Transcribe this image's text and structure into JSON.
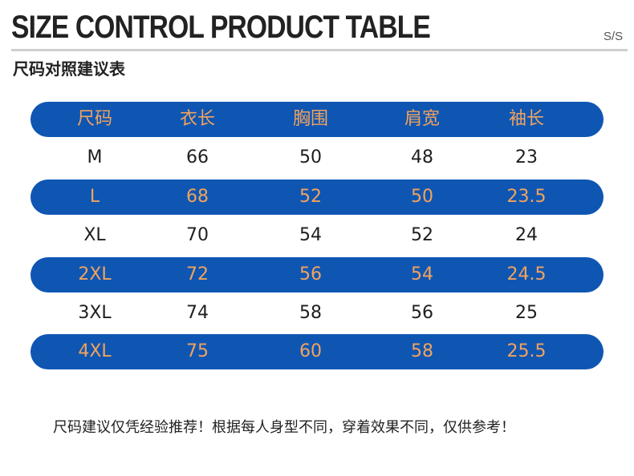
{
  "header": {
    "title": "SIZE CONTROL PRODUCT TABLE",
    "size_code": "S/S",
    "subtitle": "尺码对照建议表"
  },
  "table": {
    "headers": [
      "尺码",
      "衣长",
      "胸围",
      "肩宽",
      "袖长"
    ],
    "rows": [
      [
        "M",
        "66",
        "50",
        "48",
        "23"
      ],
      [
        "L",
        "68",
        "52",
        "50",
        "23.5"
      ],
      [
        "XL",
        "70",
        "54",
        "52",
        "24"
      ],
      [
        "2XL",
        "72",
        "56",
        "54",
        "24.5"
      ],
      [
        "3XL",
        "74",
        "58",
        "56",
        "25"
      ],
      [
        "4XL",
        "75",
        "60",
        "58",
        "25.5"
      ]
    ]
  },
  "footnote": "尺码建议仅凭经验推荐！根据每人身型不同，穿着效果不同，仅供参考！",
  "colors": {
    "band": "#0f56b3",
    "band_text": "#f2a35c",
    "plain_text": "#1e1e1e",
    "divider": "#cfcfcf"
  }
}
